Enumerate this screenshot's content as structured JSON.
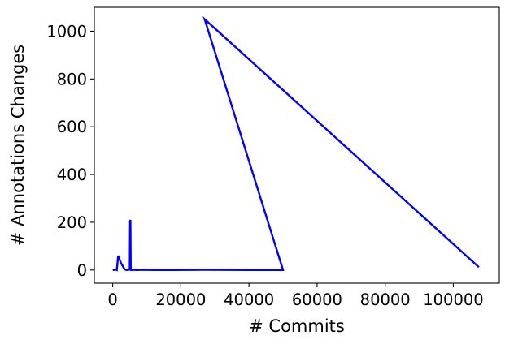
{
  "chart_data": {
    "type": "line",
    "title": "",
    "xlabel": "# Commits",
    "ylabel": "# Annotations Changes",
    "xlim": [
      -5400,
      113500
    ],
    "ylim": [
      -55,
      1100
    ],
    "xticks": [
      0,
      20000,
      40000,
      60000,
      80000,
      100000
    ],
    "xtick_labels": [
      "0",
      "20000",
      "40000",
      "60000",
      "80000",
      "100000"
    ],
    "yticks": [
      0,
      200,
      400,
      600,
      800,
      1000
    ],
    "ytick_labels": [
      "0",
      "200",
      "400",
      "600",
      "800",
      "1000"
    ],
    "grid": false,
    "legend": "none",
    "series": [
      {
        "color": "#0000ff",
        "x": [
          0,
          300,
          600,
          900,
          1200,
          1600,
          2000,
          2400,
          3000,
          3500,
          4000,
          4600,
          5000,
          5100,
          5200,
          5300,
          5400,
          6000,
          7000,
          9000,
          12000,
          18000,
          27000,
          40000,
          50000,
          27000,
          107500
        ],
        "y": [
          0,
          1,
          0,
          2,
          0,
          60,
          45,
          30,
          15,
          3,
          0,
          1,
          2,
          205,
          210,
          5,
          0,
          1,
          0,
          1,
          0,
          0,
          1,
          0,
          0,
          1050,
          12
        ]
      }
    ]
  }
}
